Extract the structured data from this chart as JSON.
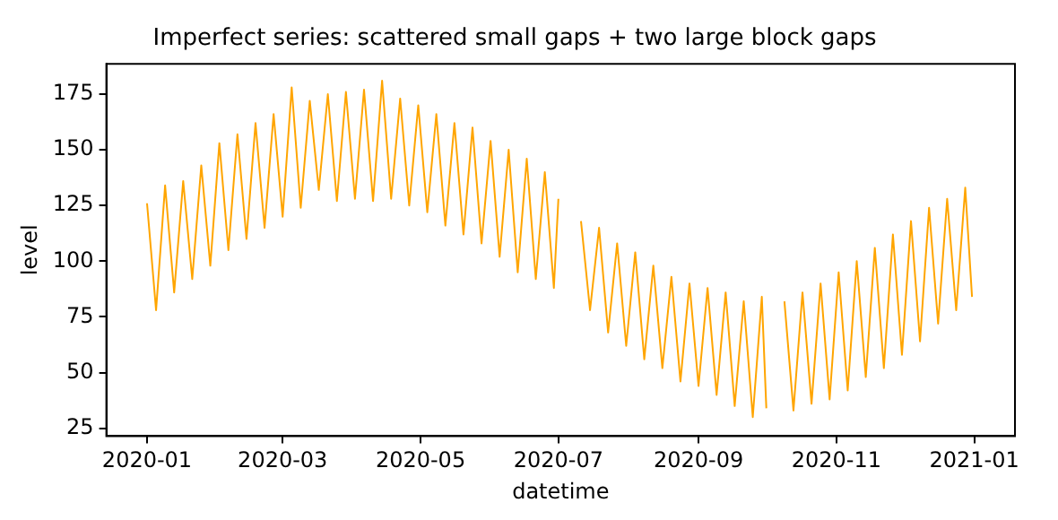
{
  "chart_data": {
    "type": "line",
    "title": "Imperfect series: scattered small gaps + two large block gaps",
    "xlabel": "datetime",
    "ylabel": "level",
    "x": [
      "2020-01-01",
      "2020-01-05",
      "2020-01-09",
      "2020-01-13",
      "2020-01-17",
      "2020-01-21",
      "2020-01-25",
      "2020-01-29",
      "2020-02-02",
      "2020-02-06",
      "2020-02-10",
      "2020-02-14",
      "2020-02-18",
      "2020-02-22",
      "2020-02-26",
      "2020-03-01",
      "2020-03-05",
      "2020-03-09",
      "2020-03-13",
      "2020-03-17",
      "2020-03-21",
      "2020-03-25",
      "2020-03-29",
      "2020-04-02",
      "2020-04-06",
      "2020-04-10",
      "2020-04-14",
      "2020-04-18",
      "2020-04-22",
      "2020-04-26",
      "2020-04-30",
      "2020-05-04",
      "2020-05-08",
      "2020-05-12",
      "2020-05-16",
      "2020-05-20",
      "2020-05-24",
      "2020-05-28",
      "2020-06-01",
      "2020-06-05",
      "2020-06-09",
      "2020-06-13",
      "2020-06-17",
      "2020-06-21",
      "2020-06-25",
      "2020-06-29",
      "2020-07-01",
      "2020-07-05",
      "2020-07-11",
      "2020-07-15",
      "2020-07-19",
      "2020-07-23",
      "2020-07-27",
      "2020-07-31",
      "2020-08-04",
      "2020-08-08",
      "2020-08-12",
      "2020-08-16",
      "2020-08-20",
      "2020-08-24",
      "2020-08-28",
      "2020-09-01",
      "2020-09-05",
      "2020-09-09",
      "2020-09-13",
      "2020-09-17",
      "2020-09-21",
      "2020-09-25",
      "2020-09-29",
      "2020-10-01",
      "2020-10-04",
      "2020-10-09",
      "2020-10-13",
      "2020-10-17",
      "2020-10-21",
      "2020-10-25",
      "2020-10-29",
      "2020-11-02",
      "2020-11-06",
      "2020-11-10",
      "2020-11-14",
      "2020-11-18",
      "2020-11-22",
      "2020-11-26",
      "2020-11-30",
      "2020-12-04",
      "2020-12-08",
      "2020-12-12",
      "2020-12-16",
      "2020-12-20",
      "2020-12-24",
      "2020-12-28",
      "2020-12-31"
    ],
    "series": [
      {
        "color": "#ffa500",
        "values": [
          126,
          78,
          134,
          86,
          136,
          92,
          143,
          98,
          153,
          105,
          157,
          110,
          162,
          115,
          166,
          120,
          178,
          124,
          172,
          132,
          175,
          127,
          176,
          128,
          177,
          127,
          181,
          128,
          173,
          125,
          170,
          122,
          166,
          116,
          162,
          112,
          160,
          108,
          154,
          102,
          150,
          95,
          146,
          92,
          140,
          88,
          128,
          null,
          118,
          78,
          115,
          68,
          108,
          62,
          104,
          56,
          98,
          52,
          93,
          46,
          90,
          44,
          88,
          40,
          86,
          35,
          82,
          30,
          84,
          34,
          null,
          82,
          33,
          86,
          36,
          90,
          38,
          95,
          42,
          100,
          48,
          106,
          52,
          112,
          58,
          118,
          64,
          124,
          72,
          128,
          78,
          133,
          84
        ]
      }
    ],
    "xlim": [
      "2019-12-14",
      "2021-01-19"
    ],
    "xticks": [
      {
        "value": "2020-01-01",
        "label": "2020-01"
      },
      {
        "value": "2020-03-01",
        "label": "2020-03"
      },
      {
        "value": "2020-05-01",
        "label": "2020-05"
      },
      {
        "value": "2020-07-01",
        "label": "2020-07"
      },
      {
        "value": "2020-09-01",
        "label": "2020-09"
      },
      {
        "value": "2020-11-01",
        "label": "2020-11"
      },
      {
        "value": "2021-01-01",
        "label": "2021-01"
      }
    ],
    "ylim": [
      21.5,
      188.6
    ],
    "yticks": [
      25,
      50,
      75,
      100,
      125,
      150,
      175
    ],
    "grid": false,
    "legend": false,
    "marker": "none",
    "line_style": "solid"
  }
}
